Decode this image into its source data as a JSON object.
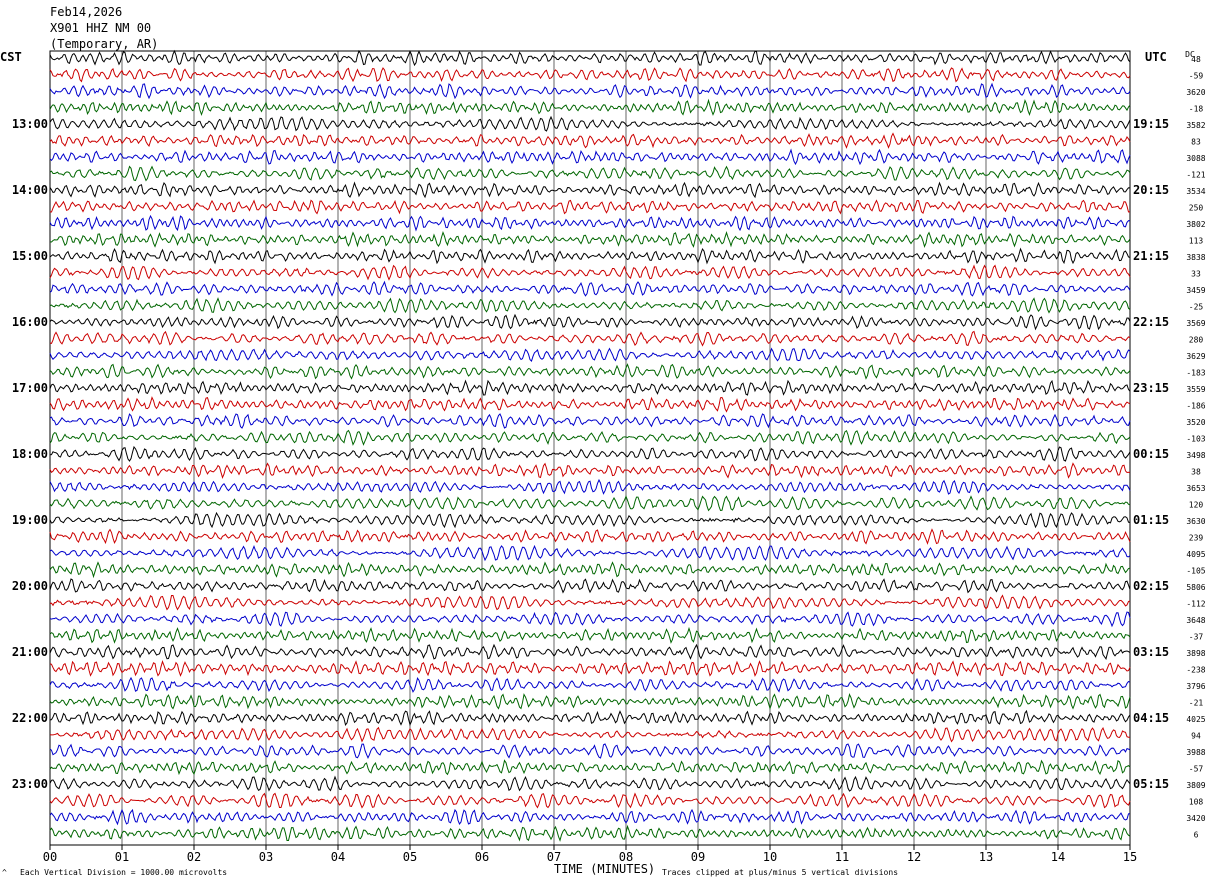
{
  "header": {
    "date": "Feb14,2026",
    "station": "X901 HHZ NM 00",
    "network": "(Temporary, AR)"
  },
  "left_timezone": "CST",
  "right_timezone": "UTC",
  "dc_label": "DC",
  "footer": {
    "scale_note": "Each Vertical Division = 1000.00 microvolts",
    "clip_note": "Traces clipped at plus/minus 5 vertical divisions",
    "corner_mark": "^"
  },
  "colors": {
    "trace_cycle": [
      "#000000",
      "#cc0000",
      "#0000cc",
      "#006600"
    ],
    "grid": "#000000"
  },
  "chart_data": {
    "type": "line",
    "title": "Feb14,2026",
    "xlabel": "TIME (MINUTES)",
    "ylabel": "",
    "xlim": [
      0,
      15
    ],
    "x_ticks": [
      "00",
      "01",
      "02",
      "03",
      "04",
      "05",
      "06",
      "07",
      "08",
      "09",
      "10",
      "11",
      "12",
      "13",
      "14",
      "15"
    ],
    "traces_per_hour": 4,
    "minutes_per_trace": 15,
    "left_hour_labels": [
      "13:00",
      "14:00",
      "15:00",
      "16:00",
      "17:00",
      "18:00",
      "19:00",
      "20:00",
      "21:00",
      "22:00",
      "23:00"
    ],
    "right_hour_labels": [
      "19:15",
      "20:15",
      "21:15",
      "22:15",
      "23:15",
      "00:15",
      "01:15",
      "02:15",
      "03:15",
      "04:15",
      "05:15"
    ],
    "dc_offsets": [
      "48",
      "-59",
      "3620",
      "-18",
      "3582",
      "83",
      "3088",
      "-121",
      "3534",
      "250",
      "3802",
      "113",
      "3838",
      "33",
      "3459",
      "-25",
      "3569",
      "280",
      "3629",
      "-183",
      "3559",
      "-186",
      "3520",
      "-103",
      "3498",
      "38",
      "3653",
      "120",
      "3630",
      "239",
      "4095",
      "-105",
      "5806",
      "-112",
      "3648",
      "-37",
      "3898",
      "-238",
      "3796",
      "-21",
      "4025",
      "94",
      "3988",
      "-57",
      "3809",
      "108",
      "3420",
      "6"
    ],
    "trace_count": 48,
    "grid": true
  }
}
